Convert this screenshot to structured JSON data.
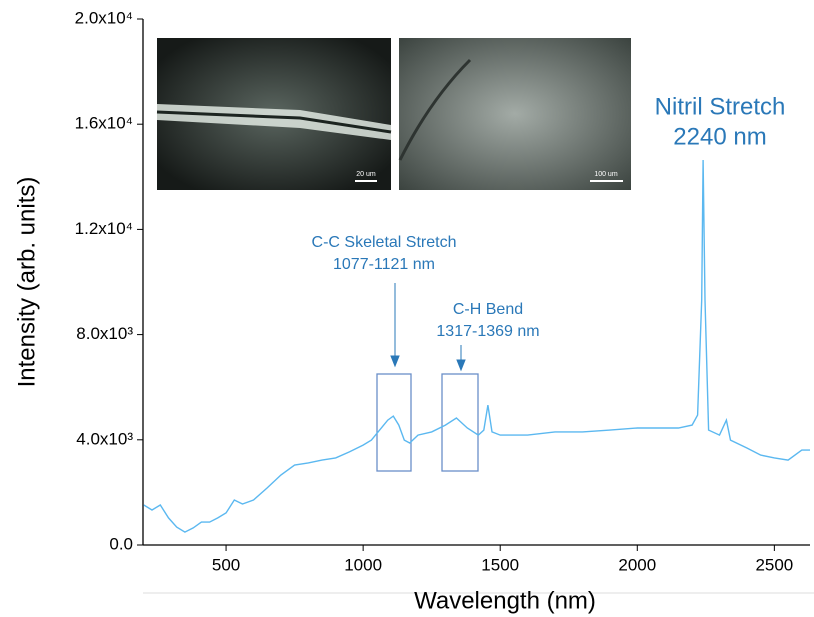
{
  "chart_data": {
    "type": "line",
    "x_label": "Wavelength (nm)",
    "y_label": "Intensity (arb. units)",
    "xlim": [
      197,
      2630
    ],
    "ylim": [
      0,
      20000
    ],
    "xticks": [
      500,
      1000,
      1500,
      2000,
      2500
    ],
    "yticks": [
      {
        "value": 0,
        "label": "0.0"
      },
      {
        "value": 4000,
        "label": "4.0x10³"
      },
      {
        "value": 8000,
        "label": "8.0x10³"
      },
      {
        "value": 12000,
        "label": "1.2x10⁴"
      },
      {
        "value": 16000,
        "label": "1.6x10⁴"
      },
      {
        "value": 20000,
        "label": "2.0x10⁴"
      }
    ],
    "series": [
      {
        "color": "#5bb8f0",
        "x": [
          200,
          230,
          260,
          290,
          320,
          350,
          380,
          410,
          440,
          470,
          500,
          530,
          560,
          600,
          650,
          700,
          750,
          800,
          850,
          900,
          950,
          1000,
          1030,
          1060,
          1090,
          1110,
          1130,
          1150,
          1170,
          1200,
          1250,
          1300,
          1340,
          1380,
          1420,
          1440,
          1455,
          1470,
          1500,
          1600,
          1700,
          1800,
          1900,
          2000,
          2100,
          2150,
          2200,
          2220,
          2235,
          2240,
          2247,
          2260,
          2300,
          2325,
          2340,
          2400,
          2450,
          2500,
          2550,
          2600,
          2630
        ],
        "values": [
          1520,
          1330,
          1520,
          1030,
          680,
          490,
          650,
          870,
          870,
          1030,
          1220,
          1710,
          1560,
          1710,
          2170,
          2660,
          3040,
          3120,
          3230,
          3310,
          3540,
          3800,
          3990,
          4370,
          4750,
          4900,
          4560,
          3990,
          3880,
          4180,
          4300,
          4560,
          4830,
          4450,
          4180,
          4370,
          5320,
          4300,
          4180,
          4180,
          4300,
          4300,
          4370,
          4450,
          4450,
          4450,
          4560,
          4940,
          9310,
          14640,
          9310,
          4370,
          4180,
          4750,
          3990,
          3690,
          3420,
          3310,
          3230,
          3610,
          3610
        ]
      }
    ],
    "annotations": [
      {
        "lines": [
          "Nitril Stretch",
          "2240 nm"
        ]
      },
      {
        "lines": [
          "C-C Skeletal Stretch",
          "1077-1121 nm"
        ]
      },
      {
        "lines": [
          "C-H Bend",
          "1317-1369 nm"
        ]
      }
    ],
    "insets": [
      {
        "scale_label": "20 um"
      },
      {
        "scale_label": "100 um"
      }
    ]
  }
}
